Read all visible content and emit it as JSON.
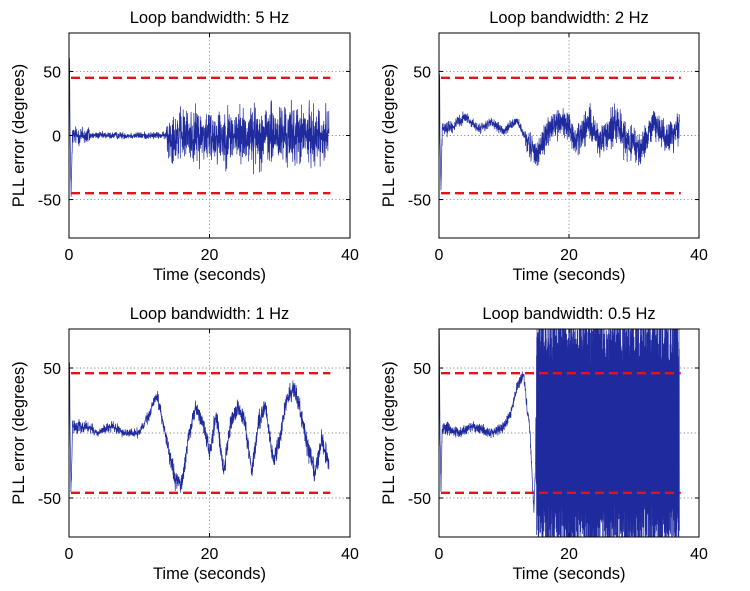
{
  "figure": {
    "colors": {
      "signal": "#1f2a9e",
      "threshold": "#e0141a",
      "grid": "#8a8a8a",
      "axis": "#000000"
    }
  },
  "chart_data": [
    {
      "type": "line",
      "title": "Loop bandwidth: 5 Hz",
      "xlabel": "Time (seconds)",
      "ylabel": "PLL error (degrees)",
      "xlim": [
        0,
        40
      ],
      "ylim": [
        -80,
        80
      ],
      "xticks": [
        0,
        20,
        40
      ],
      "yticks": [
        -50,
        0,
        50
      ],
      "threshold": 45,
      "grid": "dotted",
      "series": [
        {
          "name": "PLL error",
          "profile": [
            {
              "t": 0.05,
              "v": 80
            },
            {
              "t": 0.15,
              "v": 0
            },
            {
              "t": 0.3,
              "v": -45
            },
            {
              "t": 0.5,
              "v": 0
            },
            {
              "t": 3.0,
              "v": 0
            },
            {
              "t": 14.0,
              "v": 0
            },
            {
              "t": 37.0,
              "v": 0
            }
          ],
          "amplitude": [
            {
              "t": 0.0,
              "a": 10
            },
            {
              "t": 2.9,
              "a": 12
            },
            {
              "t": 3.0,
              "a": 4
            },
            {
              "t": 13.8,
              "a": 4
            },
            {
              "t": 14.0,
              "a": 28
            },
            {
              "t": 20.0,
              "a": 32
            },
            {
              "t": 25.0,
              "a": 33
            },
            {
              "t": 30.0,
              "a": 36
            },
            {
              "t": 37.0,
              "a": 30
            }
          ],
          "range": [
            -62,
            60
          ]
        }
      ]
    },
    {
      "type": "line",
      "title": "Loop bandwidth: 2 Hz",
      "xlabel": "Time (seconds)",
      "ylabel": "PLL error (degrees)",
      "xlim": [
        0,
        40
      ],
      "ylim": [
        -80,
        80
      ],
      "xticks": [
        0,
        20,
        40
      ],
      "yticks": [
        -50,
        50
      ],
      "threshold": 45,
      "grid": "dotted",
      "series": [
        {
          "name": "PLL error",
          "profile": [
            {
              "t": 0.05,
              "v": 80
            },
            {
              "t": 0.15,
              "v": 0
            },
            {
              "t": 0.3,
              "v": -45
            },
            {
              "t": 0.5,
              "v": 5
            },
            {
              "t": 2.5,
              "v": 8
            },
            {
              "t": 4.0,
              "v": 15
            },
            {
              "t": 6.0,
              "v": 5
            },
            {
              "t": 8.0,
              "v": 10
            },
            {
              "t": 10.0,
              "v": 3
            },
            {
              "t": 12.0,
              "v": 12
            },
            {
              "t": 13.5,
              "v": -5
            },
            {
              "t": 15.0,
              "v": -15
            },
            {
              "t": 17.0,
              "v": 5
            },
            {
              "t": 19.0,
              "v": 12
            },
            {
              "t": 21.0,
              "v": -5
            },
            {
              "t": 23.0,
              "v": 10
            },
            {
              "t": 25.0,
              "v": -8
            },
            {
              "t": 27.0,
              "v": 12
            },
            {
              "t": 29.0,
              "v": -5
            },
            {
              "t": 31.0,
              "v": -12
            },
            {
              "t": 33.0,
              "v": 10
            },
            {
              "t": 35.0,
              "v": -3
            },
            {
              "t": 37.0,
              "v": 8
            }
          ],
          "amplitude": [
            {
              "t": 0.0,
              "a": 10
            },
            {
              "t": 3.0,
              "a": 6
            },
            {
              "t": 13.0,
              "a": 5
            },
            {
              "t": 14.0,
              "a": 16
            },
            {
              "t": 25.0,
              "a": 20
            },
            {
              "t": 37.0,
              "a": 18
            }
          ],
          "range": [
            -56,
            48
          ]
        }
      ]
    },
    {
      "type": "line",
      "title": "Loop bandwidth: 1 Hz",
      "xlabel": "Time (seconds)",
      "ylabel": "PLL error (degrees)",
      "xlim": [
        0,
        40
      ],
      "ylim": [
        -80,
        80
      ],
      "xticks": [
        0,
        20,
        40
      ],
      "yticks": [
        -50,
        50
      ],
      "threshold": 46,
      "grid": "dotted",
      "series": [
        {
          "name": "PLL error",
          "profile": [
            {
              "t": 0.05,
              "v": 80
            },
            {
              "t": 0.15,
              "v": 0
            },
            {
              "t": 0.3,
              "v": -45
            },
            {
              "t": 0.5,
              "v": 5
            },
            {
              "t": 2.5,
              "v": 5
            },
            {
              "t": 4.0,
              "v": 0
            },
            {
              "t": 6.0,
              "v": 5
            },
            {
              "t": 8.0,
              "v": 0
            },
            {
              "t": 10.0,
              "v": 0
            },
            {
              "t": 11.5,
              "v": 15
            },
            {
              "t": 12.5,
              "v": 30
            },
            {
              "t": 13.5,
              "v": 5
            },
            {
              "t": 15.0,
              "v": -35
            },
            {
              "t": 16.0,
              "v": -40
            },
            {
              "t": 17.0,
              "v": -5
            },
            {
              "t": 18.0,
              "v": 20
            },
            {
              "t": 19.0,
              "v": 10
            },
            {
              "t": 20.0,
              "v": -15
            },
            {
              "t": 21.0,
              "v": 15
            },
            {
              "t": 22.0,
              "v": -30
            },
            {
              "t": 23.0,
              "v": 5
            },
            {
              "t": 24.0,
              "v": 20
            },
            {
              "t": 25.0,
              "v": 10
            },
            {
              "t": 26.0,
              "v": -30
            },
            {
              "t": 27.0,
              "v": 10
            },
            {
              "t": 28.0,
              "v": 20
            },
            {
              "t": 29.0,
              "v": -20
            },
            {
              "t": 30.0,
              "v": -5
            },
            {
              "t": 31.0,
              "v": 25
            },
            {
              "t": 32.0,
              "v": 35
            },
            {
              "t": 33.0,
              "v": 15
            },
            {
              "t": 34.0,
              "v": -10
            },
            {
              "t": 35.0,
              "v": -30
            },
            {
              "t": 36.0,
              "v": -5
            },
            {
              "t": 37.0,
              "v": -25
            }
          ],
          "amplitude": [
            {
              "t": 0.0,
              "a": 10
            },
            {
              "t": 3.0,
              "a": 6
            },
            {
              "t": 10.0,
              "a": 5
            },
            {
              "t": 15.0,
              "a": 10
            },
            {
              "t": 37.0,
              "a": 12
            }
          ],
          "range": [
            -58,
            54
          ]
        }
      ]
    },
    {
      "type": "line",
      "title": "Loop bandwidth: 0.5 Hz",
      "xlabel": "Time (seconds)",
      "ylabel": "PLL error (degrees)",
      "xlim": [
        0,
        40
      ],
      "ylim": [
        -80,
        80
      ],
      "xticks": [
        0,
        20,
        40
      ],
      "yticks": [
        -50,
        50
      ],
      "threshold": 46,
      "grid": "dotted",
      "series": [
        {
          "name": "PLL error",
          "profile": [
            {
              "t": 0.05,
              "v": 80
            },
            {
              "t": 0.15,
              "v": 0
            },
            {
              "t": 0.3,
              "v": -45
            },
            {
              "t": 0.5,
              "v": 5
            },
            {
              "t": 3.0,
              "v": 0
            },
            {
              "t": 5.0,
              "v": 5
            },
            {
              "t": 8.0,
              "v": 0
            },
            {
              "t": 10.0,
              "v": 5
            },
            {
              "t": 11.0,
              "v": 15
            },
            {
              "t": 12.0,
              "v": 35
            },
            {
              "t": 13.0,
              "v": 45
            },
            {
              "t": 14.0,
              "v": 0
            },
            {
              "t": 14.6,
              "v": -60
            },
            {
              "t": 15.0,
              "v": 0
            },
            {
              "t": 37.0,
              "v": 0
            }
          ],
          "amplitude": [
            {
              "t": 0.0,
              "a": 10
            },
            {
              "t": 3.0,
              "a": 6
            },
            {
              "t": 13.0,
              "a": 6
            },
            {
              "t": 14.8,
              "a": 8
            },
            {
              "t": 15.0,
              "a": 95
            },
            {
              "t": 37.0,
              "a": 95
            }
          ],
          "oscillating_after": 15.0,
          "range": [
            -80,
            80
          ]
        }
      ]
    }
  ]
}
